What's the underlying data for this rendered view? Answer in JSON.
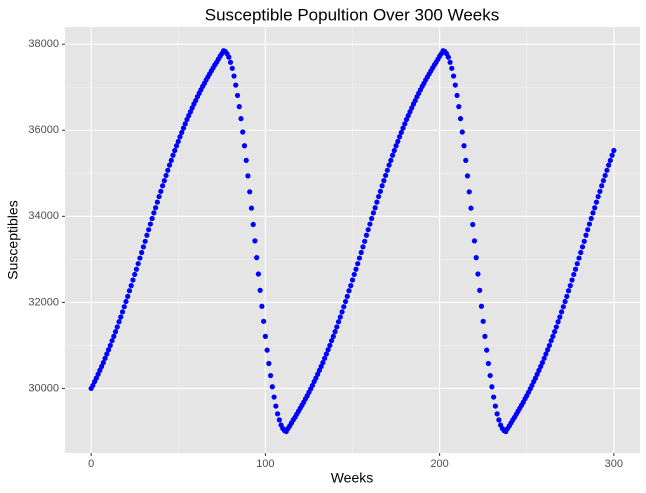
{
  "chart_data": {
    "type": "scatter",
    "title": "Susceptible Popultion Over 300 Weeks",
    "x_label": "Weeks",
    "y_label": "Susceptibles",
    "color": "blue",
    "grid": true,
    "xlim": [
      -15,
      315
    ],
    "xticks": [
      0,
      100,
      200,
      300
    ],
    "ylim": [
      28500,
      38400
    ],
    "yticks": [
      30000,
      32000,
      34000,
      36000,
      38000
    ],
    "x": [
      0,
      1,
      2,
      3,
      4,
      5,
      6,
      7,
      8,
      9,
      10,
      11,
      12,
      13,
      14,
      15,
      16,
      17,
      18,
      19,
      20,
      21,
      22,
      23,
      24,
      25,
      26,
      27,
      28,
      29,
      30,
      31,
      32,
      33,
      34,
      35,
      36,
      37,
      38,
      39,
      40,
      41,
      42,
      43,
      44,
      45,
      46,
      47,
      48,
      49,
      50,
      51,
      52,
      53,
      54,
      55,
      56,
      57,
      58,
      59,
      60,
      61,
      62,
      63,
      64,
      65,
      66,
      67,
      68,
      69,
      70,
      71,
      72,
      73,
      74,
      75,
      76,
      77,
      78,
      79,
      80,
      81,
      82,
      83,
      84,
      85,
      86,
      87,
      88,
      89,
      90,
      91,
      92,
      93,
      94,
      95,
      96,
      97,
      98,
      99,
      100,
      101,
      102,
      103,
      104,
      105,
      106,
      107,
      108,
      109,
      110,
      111,
      112,
      113,
      114,
      115,
      116,
      117,
      118,
      119,
      120,
      121,
      122,
      123,
      124,
      125,
      126,
      127,
      128,
      129,
      130,
      131,
      132,
      133,
      134,
      135,
      136,
      137,
      138,
      139,
      140,
      141,
      142,
      143,
      144,
      145,
      146,
      147,
      148,
      149,
      150,
      151,
      152,
      153,
      154,
      155,
      156,
      157,
      158,
      159,
      160,
      161,
      162,
      163,
      164,
      165,
      166,
      167,
      168,
      169,
      170,
      171,
      172,
      173,
      174,
      175,
      176,
      177,
      178,
      179,
      180,
      181,
      182,
      183,
      184,
      185,
      186,
      187,
      188,
      189,
      190,
      191,
      192,
      193,
      194,
      195,
      196,
      197,
      198,
      199,
      200,
      201,
      202,
      203,
      204,
      205,
      206,
      207,
      208,
      209,
      210,
      211,
      212,
      213,
      214,
      215,
      216,
      217,
      218,
      219,
      220,
      221,
      222,
      223,
      224,
      225,
      226,
      227,
      228,
      229,
      230,
      231,
      232,
      233,
      234,
      235,
      236,
      237,
      238,
      239,
      240,
      241,
      242,
      243,
      244,
      245,
      246,
      247,
      248,
      249,
      250,
      251,
      252,
      253,
      254,
      255,
      256,
      257,
      258,
      259,
      260,
      261,
      262,
      263,
      264,
      265,
      266,
      267,
      268,
      269,
      270,
      271,
      272,
      273,
      274,
      275,
      276,
      277,
      278,
      279,
      280,
      281,
      282,
      283,
      284,
      285,
      286,
      287,
      288,
      289,
      290,
      291,
      292,
      293,
      294,
      295,
      296,
      297,
      298,
      299,
      300
    ],
    "values": [
      30000,
      30070,
      30160,
      30240,
      30330,
      30420,
      30510,
      30600,
      30700,
      30800,
      30900,
      31000,
      31110,
      31210,
      31320,
      31430,
      31550,
      31660,
      31780,
      31900,
      32020,
      32140,
      32270,
      32390,
      32520,
      32650,
      32770,
      32900,
      33030,
      33160,
      33290,
      33420,
      33560,
      33690,
      33820,
      33950,
      34080,
      34200,
      34330,
      34460,
      34580,
      34710,
      34830,
      34950,
      35070,
      35190,
      35300,
      35420,
      35530,
      35640,
      35740,
      35850,
      35950,
      36050,
      36150,
      36250,
      36340,
      36430,
      36520,
      36610,
      36690,
      36780,
      36860,
      36940,
      37020,
      37090,
      37170,
      37240,
      37310,
      37380,
      37450,
      37520,
      37580,
      37650,
      37720,
      37780,
      37850,
      37830,
      37780,
      37700,
      37580,
      37440,
      37260,
      37050,
      36810,
      36550,
      36270,
      35960,
      35640,
      35300,
      34940,
      34570,
      34190,
      33810,
      33430,
      33040,
      32660,
      32280,
      31910,
      31560,
      31210,
      30890,
      30580,
      30300,
      30040,
      29800,
      29590,
      29410,
      29270,
      29150,
      29070,
      29020,
      29000,
      29070,
      29130,
      29200,
      29270,
      29330,
      29400,
      29470,
      29540,
      29610,
      29680,
      29760,
      29830,
      29910,
      29990,
      30070,
      30160,
      30240,
      30330,
      30420,
      30510,
      30600,
      30700,
      30800,
      30900,
      31000,
      31110,
      31210,
      31320,
      31430,
      31550,
      31660,
      31780,
      31900,
      32020,
      32140,
      32270,
      32390,
      32520,
      32650,
      32770,
      32900,
      33030,
      33160,
      33290,
      33420,
      33560,
      33690,
      33820,
      33950,
      34080,
      34200,
      34330,
      34460,
      34580,
      34710,
      34830,
      34950,
      35070,
      35190,
      35300,
      35420,
      35530,
      35640,
      35740,
      35850,
      35950,
      36050,
      36150,
      36250,
      36340,
      36430,
      36520,
      36610,
      36690,
      36780,
      36860,
      36940,
      37020,
      37090,
      37170,
      37240,
      37310,
      37380,
      37450,
      37520,
      37580,
      37650,
      37720,
      37780,
      37850,
      37830,
      37780,
      37700,
      37580,
      37440,
      37260,
      37050,
      36810,
      36550,
      36270,
      35960,
      35640,
      35300,
      34940,
      34570,
      34190,
      33810,
      33430,
      33040,
      32660,
      32280,
      31910,
      31560,
      31210,
      30890,
      30580,
      30300,
      30040,
      29800,
      29590,
      29410,
      29270,
      29150,
      29070,
      29020,
      29000,
      29070,
      29130,
      29200,
      29270,
      29330,
      29400,
      29470,
      29540,
      29610,
      29680,
      29760,
      29830,
      29910,
      29990,
      30070,
      30160,
      30240,
      30330,
      30420,
      30510,
      30600,
      30700,
      30800,
      30900,
      31000,
      31110,
      31210,
      31320,
      31430,
      31550,
      31660,
      31780,
      31900,
      32020,
      32140,
      32270,
      32390,
      32520,
      32650,
      32770,
      32900,
      33030,
      33160,
      33290,
      33420,
      33560,
      33690,
      33820,
      33950,
      34080,
      34200,
      34330,
      34460,
      34580,
      34710,
      34830,
      34950,
      35070,
      35190,
      35300,
      35420,
      35530
    ]
  }
}
